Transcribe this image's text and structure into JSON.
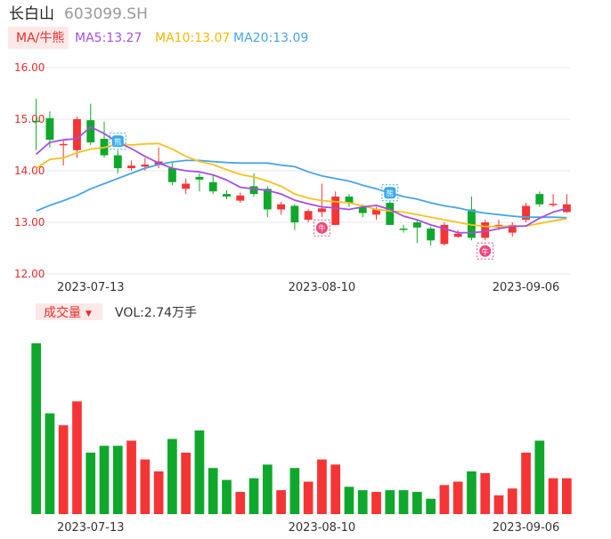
{
  "header": {
    "name": "长白山",
    "code": "603099.SH"
  },
  "indicator_bar": {
    "mode_label": "MA/牛熊",
    "ma5": "MA5:13.27",
    "ma10": "MA10:13.07",
    "ma20": "MA20:13.09"
  },
  "volume_bar": {
    "label": "成交量",
    "value": "VOL:2.74万手"
  },
  "colors": {
    "up": "#f53535",
    "down": "#0fa82c",
    "ma5": "#a550e0",
    "ma10": "#f5c21f",
    "ma20": "#4aa3e8",
    "grid": "#e8e8e8",
    "axis_text": "#e62e2e",
    "date_text": "#333333",
    "bull_marker": "#f0457a",
    "bear_marker": "#36a9f0"
  },
  "chart_data": {
    "type": "candlestick",
    "price_axis": {
      "min": 12.0,
      "max": 16.0,
      "ticks": [
        "16.00",
        "15.00",
        "14.00",
        "13.00",
        "12.00"
      ],
      "tick_values": [
        16,
        15,
        14,
        13,
        12
      ]
    },
    "x_labels": [
      {
        "index": 4,
        "text": "2023-07-13"
      },
      {
        "index": 21,
        "text": "2023-08-10"
      },
      {
        "index": 36,
        "text": "2023-09-06"
      }
    ],
    "candles": [
      {
        "o": 14.97,
        "c": 14.95,
        "h": 15.4,
        "l": 14.4
      },
      {
        "o": 15.02,
        "c": 14.6,
        "h": 15.15,
        "l": 14.45
      },
      {
        "o": 14.5,
        "c": 14.52,
        "h": 14.6,
        "l": 14.1
      },
      {
        "o": 14.4,
        "c": 15.0,
        "h": 15.05,
        "l": 14.25
      },
      {
        "o": 14.98,
        "c": 14.55,
        "h": 15.3,
        "l": 14.5
      },
      {
        "o": 14.62,
        "c": 14.3,
        "h": 14.95,
        "l": 14.25
      },
      {
        "o": 14.3,
        "c": 14.05,
        "h": 14.4,
        "l": 13.95
      },
      {
        "o": 14.05,
        "c": 14.1,
        "h": 14.2,
        "l": 14.0
      },
      {
        "o": 14.08,
        "c": 14.12,
        "h": 14.25,
        "l": 14.0
      },
      {
        "o": 14.12,
        "c": 14.18,
        "h": 14.45,
        "l": 14.05
      },
      {
        "o": 14.05,
        "c": 13.78,
        "h": 14.15,
        "l": 13.72
      },
      {
        "o": 13.65,
        "c": 13.75,
        "h": 13.85,
        "l": 13.55
      },
      {
        "o": 13.88,
        "c": 13.83,
        "h": 13.95,
        "l": 13.6
      },
      {
        "o": 13.78,
        "c": 13.6,
        "h": 13.92,
        "l": 13.55
      },
      {
        "o": 13.55,
        "c": 13.5,
        "h": 13.62,
        "l": 13.45
      },
      {
        "o": 13.42,
        "c": 13.52,
        "h": 13.58,
        "l": 13.38
      },
      {
        "o": 13.7,
        "c": 13.55,
        "h": 13.95,
        "l": 13.5
      },
      {
        "o": 13.65,
        "c": 13.25,
        "h": 13.7,
        "l": 13.1
      },
      {
        "o": 13.25,
        "c": 13.35,
        "h": 13.4,
        "l": 13.15
      },
      {
        "o": 13.32,
        "c": 13.0,
        "h": 13.35,
        "l": 12.85
      },
      {
        "o": 13.05,
        "c": 13.22,
        "h": 13.25,
        "l": 13.0
      },
      {
        "o": 13.2,
        "c": 13.27,
        "h": 13.75,
        "l": 13.1
      },
      {
        "o": 12.95,
        "c": 13.5,
        "h": 13.6,
        "l": 12.95
      },
      {
        "o": 13.5,
        "c": 13.38,
        "h": 13.55,
        "l": 13.3
      },
      {
        "o": 13.3,
        "c": 13.18,
        "h": 13.35,
        "l": 13.1
      },
      {
        "o": 13.15,
        "c": 13.25,
        "h": 13.3,
        "l": 13.05
      },
      {
        "o": 13.38,
        "c": 12.95,
        "h": 13.4,
        "l": 12.95
      },
      {
        "o": 12.88,
        "c": 12.86,
        "h": 12.95,
        "l": 12.8
      },
      {
        "o": 13.0,
        "c": 12.9,
        "h": 13.05,
        "l": 12.6
      },
      {
        "o": 12.88,
        "c": 12.65,
        "h": 12.92,
        "l": 12.55
      },
      {
        "o": 12.58,
        "c": 12.95,
        "h": 13.0,
        "l": 12.55
      },
      {
        "o": 12.72,
        "c": 12.78,
        "h": 12.85,
        "l": 12.7
      },
      {
        "o": 13.25,
        "c": 12.7,
        "h": 13.5,
        "l": 12.65
      },
      {
        "o": 12.7,
        "c": 13.0,
        "h": 13.05,
        "l": 12.65
      },
      {
        "o": 12.9,
        "c": 12.95,
        "h": 13.05,
        "l": 12.85
      },
      {
        "o": 12.8,
        "c": 12.95,
        "h": 13.0,
        "l": 12.72
      },
      {
        "o": 13.05,
        "c": 13.32,
        "h": 13.38,
        "l": 13.0
      },
      {
        "o": 13.55,
        "c": 13.35,
        "h": 13.6,
        "l": 13.3
      },
      {
        "o": 13.35,
        "c": 13.36,
        "h": 13.55,
        "l": 13.3
      },
      {
        "o": 13.2,
        "c": 13.35,
        "h": 13.55,
        "l": 13.18
      }
    ],
    "ma5": [
      14.32,
      14.55,
      14.6,
      14.62,
      14.85,
      14.72,
      14.55,
      14.43,
      14.28,
      14.15,
      14.05,
      14.0,
      13.98,
      13.92,
      13.82,
      13.68,
      13.65,
      13.62,
      13.55,
      13.43,
      13.36,
      13.3,
      13.28,
      13.25,
      13.3,
      13.33,
      13.25,
      13.12,
      13.05,
      12.95,
      12.88,
      12.8,
      12.8,
      12.82,
      12.88,
      12.92,
      12.93,
      13.08,
      13.2,
      13.27
    ],
    "ma10": [
      14.05,
      14.22,
      14.25,
      14.35,
      14.42,
      14.45,
      14.52,
      14.5,
      14.52,
      14.53,
      14.42,
      14.28,
      14.18,
      14.12,
      14.02,
      13.93,
      13.88,
      13.8,
      13.7,
      13.55,
      13.47,
      13.42,
      13.4,
      13.38,
      13.32,
      13.25,
      13.22,
      13.2,
      13.15,
      13.1,
      13.05,
      13.0,
      12.95,
      12.92,
      12.92,
      12.93,
      12.93,
      12.98,
      13.03,
      13.07
    ],
    "ma20": [
      13.22,
      13.33,
      13.42,
      13.52,
      13.65,
      13.75,
      13.85,
      13.95,
      14.05,
      14.12,
      14.17,
      14.2,
      14.2,
      14.18,
      14.16,
      14.15,
      14.15,
      14.15,
      14.11,
      14.08,
      13.98,
      13.9,
      13.85,
      13.8,
      13.72,
      13.65,
      13.57,
      13.5,
      13.45,
      13.38,
      13.32,
      13.28,
      13.22,
      13.18,
      13.15,
      13.12,
      13.1,
      13.1,
      13.1,
      13.09
    ],
    "volume": [
      100,
      59,
      52,
      66,
      36,
      40,
      40,
      43,
      32,
      25,
      44,
      36,
      49,
      27,
      20,
      13,
      21,
      29,
      14,
      27,
      19,
      32,
      29,
      16,
      14,
      13,
      14,
      14,
      13,
      9,
      17,
      19,
      25,
      24,
      11,
      15,
      36,
      43,
      21,
      21
    ],
    "markers": [
      {
        "index": 6,
        "type": "bear",
        "glyph": "熊"
      },
      {
        "index": 21,
        "type": "bull",
        "glyph": "牛"
      },
      {
        "index": 26,
        "type": "bear",
        "glyph": "熊"
      },
      {
        "index": 33,
        "type": "bull",
        "glyph": "牛"
      }
    ]
  }
}
